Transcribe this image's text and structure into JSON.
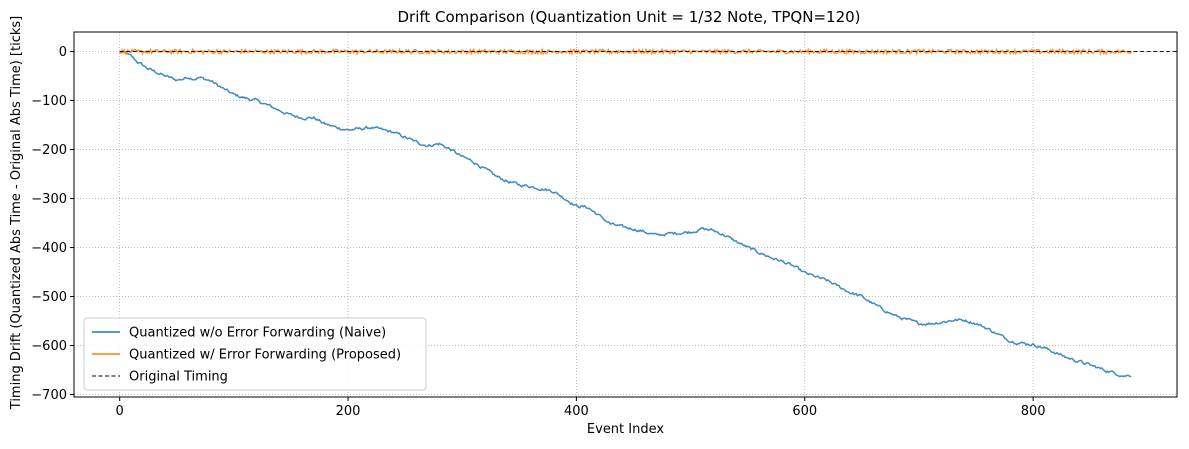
{
  "chart_data": {
    "type": "line",
    "title": "Drift Comparison (Quantization Unit = 1/32 Note, TPQN=120)",
    "xlabel": "Event Index",
    "ylabel": "Timing Drift (Quantized Abs Time - Original Abs Time) [ticks]",
    "xlim": [
      -40,
      926
    ],
    "ylim": [
      -705,
      40
    ],
    "xticks": [
      0,
      200,
      400,
      600,
      800
    ],
    "yticks": [
      0,
      -100,
      -200,
      -300,
      -400,
      -500,
      -600,
      -700
    ],
    "grid": true,
    "legend_position": "lower-left",
    "series": [
      {
        "name": "Quantized w/o Error Forwarding (Naive)",
        "color": "#1f77b4",
        "line_style": "solid",
        "trend": {
          "x": [
            0,
            5,
            10,
            15,
            25,
            40,
            50,
            55,
            60,
            65,
            70,
            80,
            90,
            100,
            110,
            120,
            130,
            140,
            150,
            160,
            170,
            180,
            190,
            200,
            210,
            220,
            230,
            240,
            250,
            260,
            270,
            280,
            290,
            300,
            310,
            320,
            330,
            340,
            350,
            360,
            370,
            380,
            390,
            400,
            410,
            420,
            430,
            440,
            450,
            460,
            470,
            480,
            490,
            500,
            510,
            520,
            530,
            540,
            550,
            560,
            570,
            580,
            590,
            600,
            610,
            620,
            630,
            640,
            650,
            660,
            670,
            680,
            690,
            700,
            710,
            720,
            730,
            740,
            750,
            760,
            770,
            780,
            790,
            800,
            810,
            820,
            830,
            840,
            850,
            860,
            870,
            880,
            886
          ],
          "y": [
            0,
            -3,
            -10,
            -20,
            -35,
            -50,
            -58,
            -56,
            -52,
            -55,
            -53,
            -60,
            -75,
            -88,
            -95,
            -100,
            -110,
            -120,
            -130,
            -135,
            -135,
            -148,
            -155,
            -160,
            -158,
            -155,
            -160,
            -165,
            -175,
            -185,
            -192,
            -188,
            -200,
            -215,
            -225,
            -240,
            -255,
            -265,
            -272,
            -275,
            -280,
            -285,
            -300,
            -315,
            -318,
            -335,
            -352,
            -358,
            -362,
            -368,
            -375,
            -372,
            -370,
            -368,
            -362,
            -365,
            -375,
            -388,
            -400,
            -410,
            -420,
            -428,
            -438,
            -452,
            -460,
            -468,
            -480,
            -492,
            -500,
            -515,
            -528,
            -540,
            -548,
            -555,
            -555,
            -552,
            -548,
            -548,
            -555,
            -565,
            -578,
            -590,
            -595,
            -598,
            -605,
            -615,
            -625,
            -632,
            -640,
            -648,
            -655,
            -662,
            -660
          ]
        },
        "noise_amplitude": 2.5
      },
      {
        "name": "Quantized w/ Error Forwarding (Proposed)",
        "color": "#ff7f0e",
        "line_style": "solid",
        "trend": {
          "x": [
            0,
            886
          ],
          "y": [
            0,
            0
          ]
        },
        "noise_amplitude": 4
      },
      {
        "name": "Original Timing",
        "color": "#000000",
        "line_style": "dashed",
        "trend": {
          "x": [
            0,
            926
          ],
          "y": [
            0,
            0
          ]
        },
        "noise_amplitude": 0
      }
    ]
  }
}
